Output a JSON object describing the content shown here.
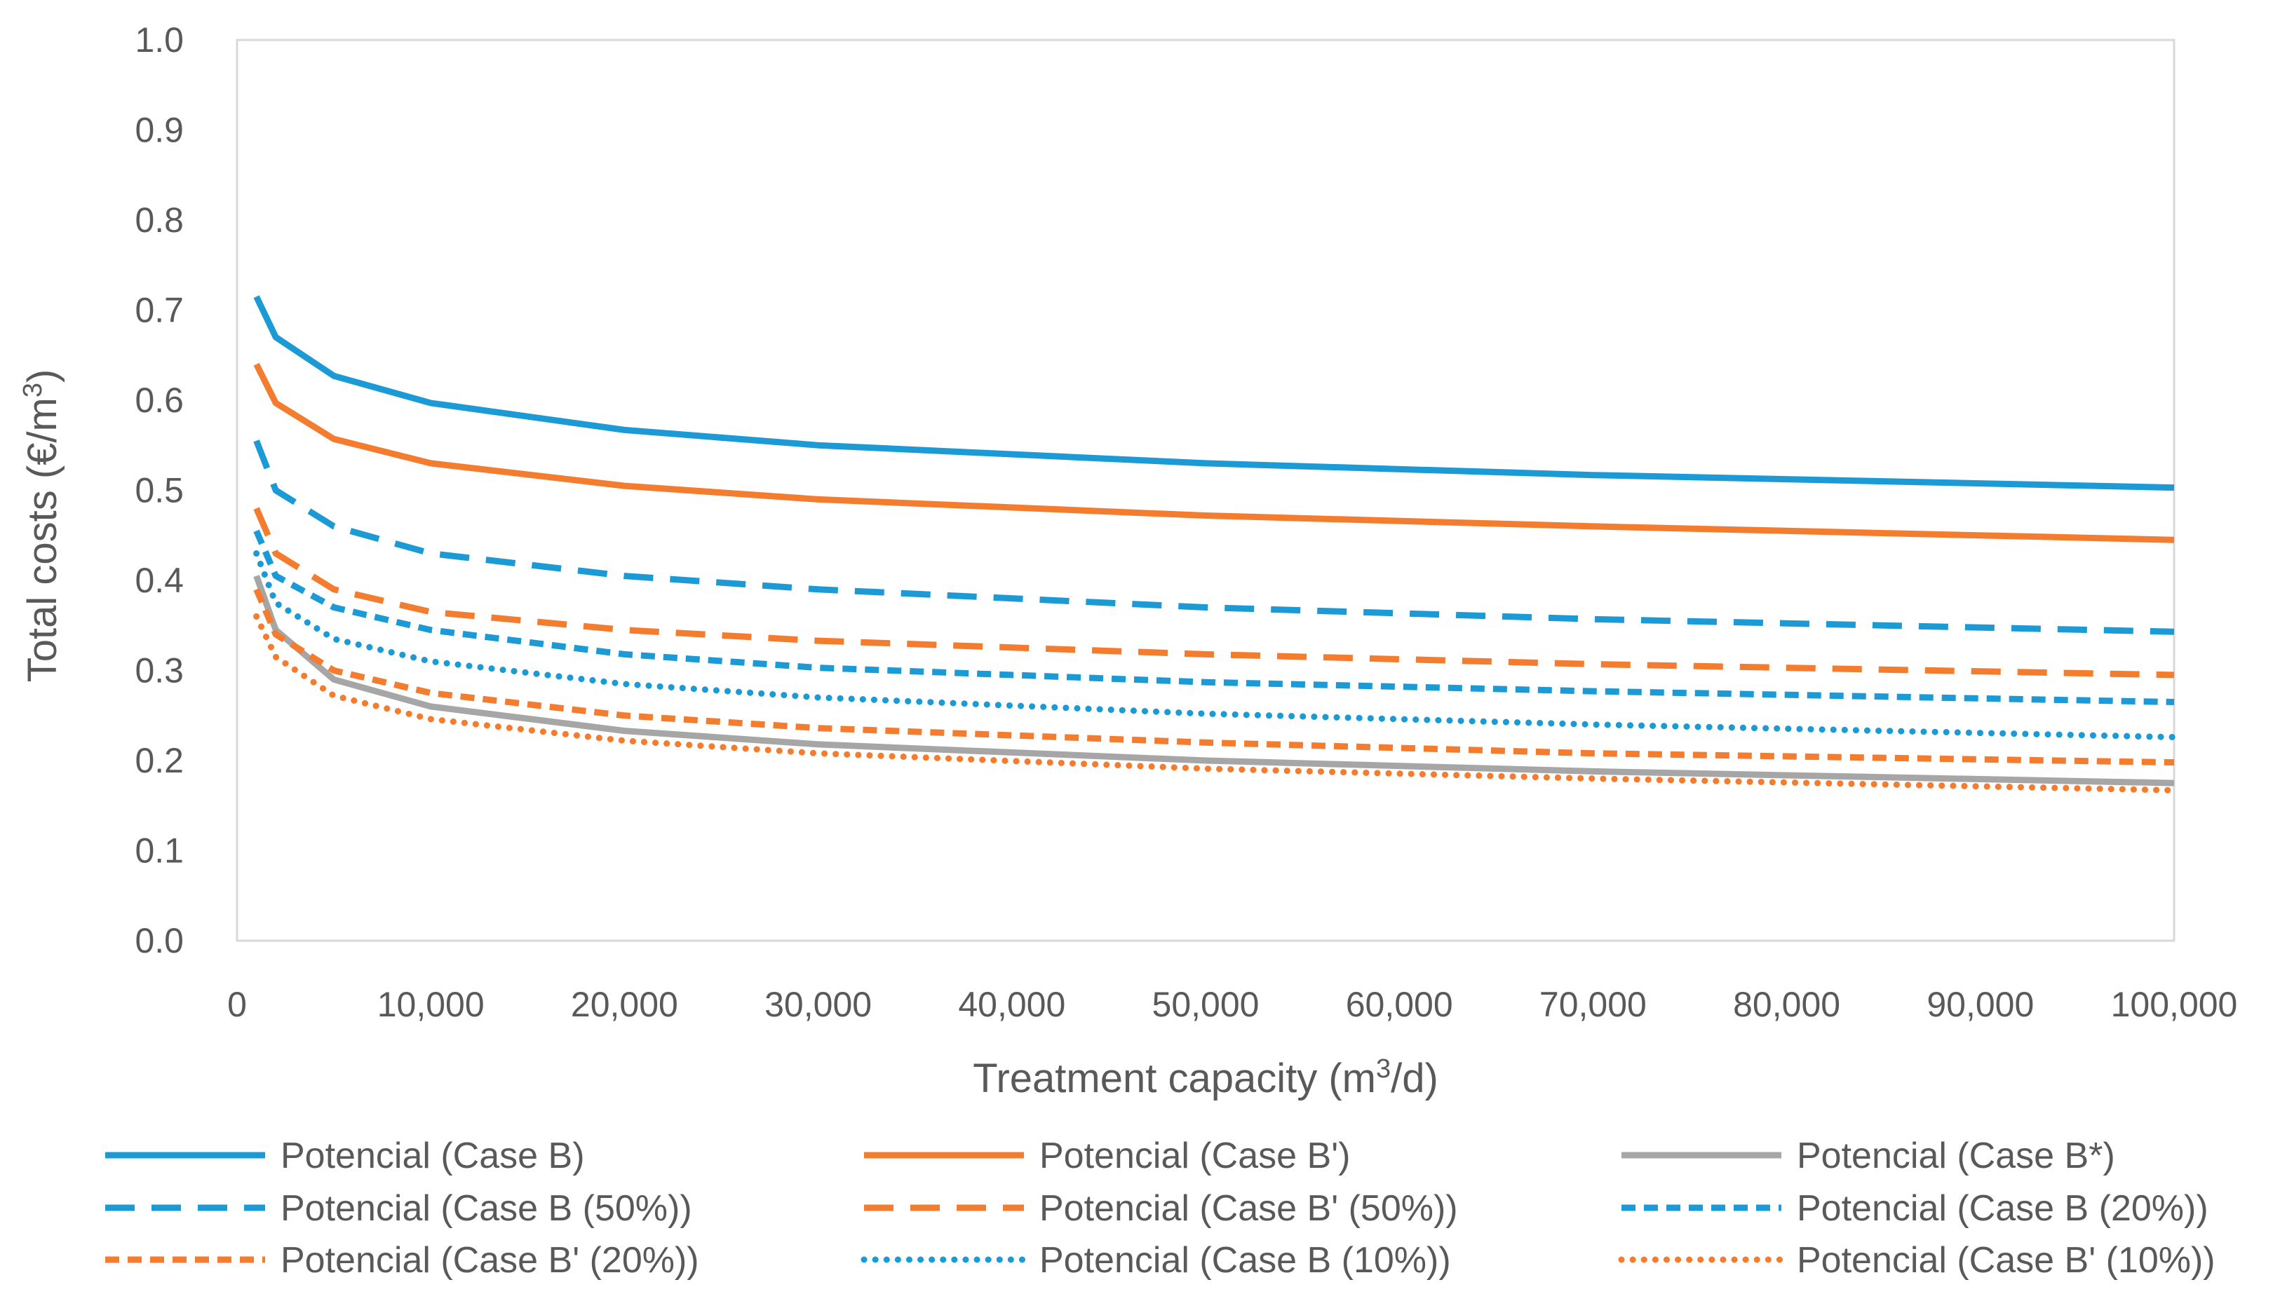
{
  "chart_data": {
    "type": "line",
    "title": "",
    "xlabel": "Treatment capacity (m3/d)",
    "xlabel_parts": {
      "pre": "Treatment capacity (m",
      "sup": "3",
      "post": "/d)"
    },
    "ylabel": "Total costs (€/m3)",
    "ylabel_parts": {
      "pre": "Total costs (€/m",
      "sup": "3",
      "post": ")"
    },
    "xlim": [
      0,
      100000
    ],
    "ylim": [
      0,
      1.0
    ],
    "x_ticks": [
      0,
      10000,
      20000,
      30000,
      40000,
      50000,
      60000,
      70000,
      80000,
      90000,
      100000
    ],
    "x_tick_labels": [
      "0",
      "10,000",
      "20,000",
      "30,000",
      "40,000",
      "50,000",
      "60,000",
      "70,000",
      "80,000",
      "90,000",
      "100,000"
    ],
    "y_ticks": [
      0,
      0.1,
      0.2,
      0.3,
      0.4,
      0.5,
      0.6,
      0.7,
      0.8,
      0.9,
      1.0
    ],
    "y_tick_labels": [
      "0.0",
      "0.1",
      "0.2",
      "0.3",
      "0.4",
      "0.5",
      "0.6",
      "0.7",
      "0.8",
      "0.9",
      "1.0"
    ],
    "grid": false,
    "legend_position": "bottom",
    "x": [
      1000,
      2000,
      5000,
      10000,
      20000,
      30000,
      50000,
      70000,
      100000
    ],
    "series": [
      {
        "name": "Potencial (Case B)",
        "color": "#1b9ad6",
        "style": "solid",
        "values": [
          0.715,
          0.67,
          0.627,
          0.597,
          0.567,
          0.55,
          0.53,
          0.517,
          0.503
        ]
      },
      {
        "name": "Potencial (Case B')",
        "color": "#f47c2f",
        "style": "solid",
        "values": [
          0.64,
          0.597,
          0.557,
          0.53,
          0.505,
          0.49,
          0.472,
          0.46,
          0.445
        ]
      },
      {
        "name": "Potencial (Case B*)",
        "color": "#a6a6a6",
        "style": "solid",
        "values": [
          0.405,
          0.345,
          0.29,
          0.26,
          0.233,
          0.218,
          0.2,
          0.188,
          0.175
        ]
      },
      {
        "name": "Potencial (Case B (50%))",
        "color": "#1b9ad6",
        "style": "longdash",
        "values": [
          0.555,
          0.5,
          0.46,
          0.43,
          0.405,
          0.39,
          0.37,
          0.357,
          0.343
        ]
      },
      {
        "name": "Potencial (Case B' (50%))",
        "color": "#f47c2f",
        "style": "longdash",
        "values": [
          0.48,
          0.43,
          0.39,
          0.365,
          0.345,
          0.333,
          0.318,
          0.307,
          0.295
        ]
      },
      {
        "name": "Potencial (Case B (20%))",
        "color": "#1b9ad6",
        "style": "shortdash",
        "values": [
          0.455,
          0.405,
          0.37,
          0.345,
          0.318,
          0.303,
          0.287,
          0.277,
          0.265
        ]
      },
      {
        "name": "Potencial (Case B' (20%))",
        "color": "#f47c2f",
        "style": "shortdash",
        "values": [
          0.39,
          0.34,
          0.3,
          0.275,
          0.25,
          0.236,
          0.22,
          0.208,
          0.198
        ]
      },
      {
        "name": "Potencial (Case B (10%))",
        "color": "#1b9ad6",
        "style": "dotted",
        "values": [
          0.43,
          0.375,
          0.335,
          0.31,
          0.285,
          0.27,
          0.252,
          0.24,
          0.226
        ]
      },
      {
        "name": "Potencial (Case B' (10%))",
        "color": "#f47c2f",
        "style": "dotted",
        "values": [
          0.36,
          0.315,
          0.272,
          0.246,
          0.222,
          0.208,
          0.191,
          0.18,
          0.167
        ]
      }
    ]
  }
}
